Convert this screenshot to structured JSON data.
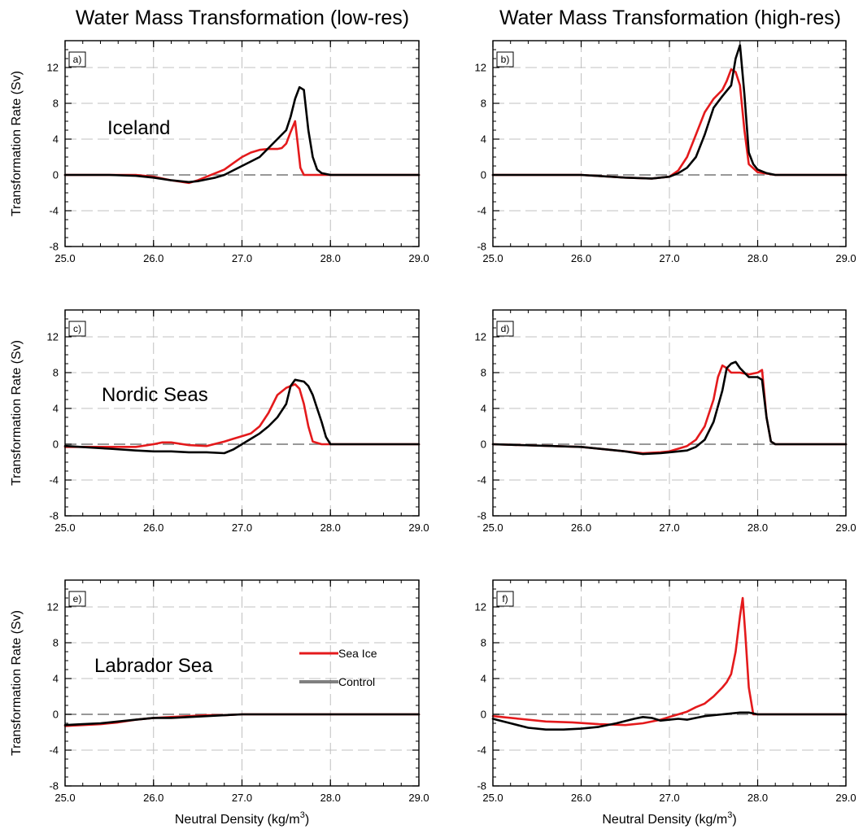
{
  "figure": {
    "column_titles": [
      "Water Mass Transformation (low-res)",
      "Water Mass Transformation (high-res)"
    ],
    "ylabel": "Transformation Rate (Sv)",
    "xlabel_main": "Neutral Density (kg/m",
    "xlabel_sup": "3",
    "xlabel_close": ")",
    "colors": {
      "sea_ice": "#e41a1c",
      "control": "#000000",
      "zero_line": "#777777",
      "grid": "#c0c0c0"
    }
  },
  "chart_data": [
    {
      "type": "line",
      "panel": "a)",
      "region": "Iceland",
      "column": "low-res",
      "xlim": [
        25.0,
        29.0
      ],
      "ylim": [
        -8,
        15
      ],
      "xticks": [
        "25.0",
        "26.0",
        "27.0",
        "28.0",
        "29.0"
      ],
      "yticks": [
        "-8",
        "-4",
        "0",
        "4",
        "8",
        "12"
      ],
      "grid": true,
      "series": [
        {
          "name": "Sea Ice",
          "color": "#e41a1c",
          "x": [
            25.0,
            25.5,
            25.8,
            26.0,
            26.2,
            26.4,
            26.5,
            26.6,
            26.7,
            26.8,
            26.9,
            27.0,
            27.1,
            27.2,
            27.3,
            27.4,
            27.45,
            27.5,
            27.55,
            27.6,
            27.63,
            27.66,
            27.7,
            28.0,
            29.0
          ],
          "y": [
            0,
            0,
            0,
            -0.2,
            -0.6,
            -0.9,
            -0.6,
            -0.2,
            0.2,
            0.6,
            1.3,
            2.0,
            2.5,
            2.8,
            2.9,
            2.9,
            3.0,
            3.5,
            4.8,
            6.0,
            3.5,
            0.8,
            0,
            0,
            0
          ]
        },
        {
          "name": "Control",
          "color": "#000000",
          "x": [
            25.0,
            25.5,
            25.8,
            26.0,
            26.2,
            26.4,
            26.5,
            26.6,
            26.7,
            26.8,
            26.9,
            27.0,
            27.1,
            27.2,
            27.3,
            27.4,
            27.45,
            27.5,
            27.55,
            27.6,
            27.65,
            27.7,
            27.75,
            27.8,
            27.85,
            27.9,
            28.0,
            29.0
          ],
          "y": [
            0,
            0,
            -0.1,
            -0.3,
            -0.6,
            -0.8,
            -0.7,
            -0.5,
            -0.3,
            0,
            0.5,
            1.0,
            1.5,
            2.0,
            3.0,
            4.0,
            4.5,
            5.0,
            6.5,
            8.5,
            9.8,
            9.5,
            5.0,
            2.0,
            0.6,
            0.2,
            0,
            0
          ]
        }
      ]
    },
    {
      "type": "line",
      "panel": "b)",
      "region": "",
      "column": "high-res",
      "xlim": [
        25.0,
        29.0
      ],
      "ylim": [
        -8,
        15
      ],
      "xticks": [
        "25.0",
        "26.0",
        "27.0",
        "28.0",
        "29.0"
      ],
      "yticks": [
        "-8",
        "-4",
        "0",
        "4",
        "8",
        "12"
      ],
      "grid": true,
      "series": [
        {
          "name": "Sea Ice",
          "color": "#e41a1c",
          "x": [
            25.0,
            26.0,
            26.5,
            26.8,
            27.0,
            27.1,
            27.2,
            27.3,
            27.4,
            27.5,
            27.6,
            27.65,
            27.7,
            27.75,
            27.8,
            27.85,
            27.9,
            28.0,
            28.2,
            29.0
          ],
          "y": [
            0,
            0,
            -0.3,
            -0.4,
            -0.2,
            0.5,
            2.0,
            4.5,
            7.0,
            8.5,
            9.5,
            10.5,
            11.8,
            11.5,
            10.0,
            5.0,
            1.2,
            0.3,
            0,
            0
          ]
        },
        {
          "name": "Control",
          "color": "#000000",
          "x": [
            25.0,
            26.0,
            26.5,
            26.8,
            27.0,
            27.1,
            27.2,
            27.3,
            27.4,
            27.5,
            27.6,
            27.7,
            27.75,
            27.8,
            27.85,
            27.9,
            27.95,
            28.0,
            28.1,
            28.2,
            29.0
          ],
          "y": [
            0,
            0,
            -0.3,
            -0.4,
            -0.2,
            0.2,
            0.8,
            2.0,
            4.5,
            7.5,
            8.8,
            10.0,
            13.0,
            14.5,
            9.0,
            2.5,
            1.2,
            0.6,
            0.2,
            0,
            0
          ]
        }
      ]
    },
    {
      "type": "line",
      "panel": "c)",
      "region": "Nordic Seas",
      "column": "low-res",
      "xlim": [
        25.0,
        29.0
      ],
      "ylim": [
        -8,
        15
      ],
      "xticks": [
        "25.0",
        "26.0",
        "27.0",
        "28.0",
        "29.0"
      ],
      "yticks": [
        "-8",
        "-4",
        "0",
        "4",
        "8",
        "12"
      ],
      "grid": true,
      "series": [
        {
          "name": "Sea Ice",
          "color": "#e41a1c",
          "x": [
            25.0,
            25.4,
            25.8,
            26.0,
            26.1,
            26.2,
            26.4,
            26.6,
            26.8,
            26.9,
            27.0,
            27.1,
            27.2,
            27.3,
            27.4,
            27.5,
            27.6,
            27.65,
            27.7,
            27.75,
            27.8,
            27.9,
            29.0
          ],
          "y": [
            -0.3,
            -0.3,
            -0.3,
            0,
            0.2,
            0.2,
            -0.1,
            -0.2,
            0.3,
            0.6,
            0.9,
            1.2,
            2.0,
            3.5,
            5.5,
            6.3,
            6.7,
            6.2,
            4.5,
            2.0,
            0.3,
            0,
            0
          ]
        },
        {
          "name": "Control",
          "color": "#000000",
          "x": [
            25.0,
            25.5,
            25.8,
            26.0,
            26.2,
            26.4,
            26.6,
            26.8,
            26.9,
            27.0,
            27.1,
            27.2,
            27.3,
            27.4,
            27.5,
            27.55,
            27.6,
            27.7,
            27.75,
            27.8,
            27.85,
            27.9,
            27.95,
            28.0,
            29.0
          ],
          "y": [
            -0.2,
            -0.5,
            -0.7,
            -0.8,
            -0.8,
            -0.9,
            -0.9,
            -1.0,
            -0.6,
            0,
            0.6,
            1.2,
            2.0,
            3.0,
            4.5,
            6.5,
            7.2,
            7.0,
            6.5,
            5.5,
            4.0,
            2.5,
            0.8,
            0,
            0
          ]
        }
      ]
    },
    {
      "type": "line",
      "panel": "d)",
      "region": "",
      "column": "high-res",
      "xlim": [
        25.0,
        29.0
      ],
      "ylim": [
        -8,
        15
      ],
      "xticks": [
        "25.0",
        "26.0",
        "27.0",
        "28.0",
        "29.0"
      ],
      "yticks": [
        "-8",
        "-4",
        "0",
        "4",
        "8",
        "12"
      ],
      "grid": true,
      "series": [
        {
          "name": "Sea Ice",
          "color": "#e41a1c",
          "x": [
            25.0,
            26.0,
            26.5,
            26.7,
            26.9,
            27.0,
            27.1,
            27.2,
            27.3,
            27.4,
            27.5,
            27.55,
            27.6,
            27.65,
            27.7,
            27.8,
            27.9,
            28.0,
            28.05,
            28.1,
            28.15,
            28.2,
            29.0
          ],
          "y": [
            0,
            -0.3,
            -0.8,
            -1.0,
            -0.9,
            -0.8,
            -0.5,
            -0.2,
            0.5,
            2.0,
            5.0,
            7.5,
            8.8,
            8.5,
            8.0,
            8.0,
            7.8,
            8.0,
            8.3,
            3.0,
            0.3,
            0,
            0
          ]
        },
        {
          "name": "Control",
          "color": "#000000",
          "x": [
            25.0,
            26.0,
            26.5,
            26.7,
            26.9,
            27.0,
            27.1,
            27.2,
            27.3,
            27.4,
            27.5,
            27.6,
            27.65,
            27.7,
            27.75,
            27.8,
            27.9,
            28.0,
            28.05,
            28.1,
            28.15,
            28.2,
            29.0
          ],
          "y": [
            0,
            -0.3,
            -0.8,
            -1.1,
            -1.0,
            -0.9,
            -0.8,
            -0.7,
            -0.3,
            0.5,
            2.5,
            6.0,
            8.5,
            9.0,
            9.2,
            8.5,
            7.5,
            7.5,
            7.2,
            3.0,
            0.3,
            0,
            0
          ]
        }
      ]
    },
    {
      "type": "line",
      "panel": "e)",
      "region": "Labrador Sea",
      "column": "low-res",
      "xlim": [
        25.0,
        29.0
      ],
      "ylim": [
        -8,
        15
      ],
      "xticks": [
        "25.0",
        "26.0",
        "27.0",
        "28.0",
        "29.0"
      ],
      "yticks": [
        "-8",
        "-4",
        "0",
        "4",
        "8",
        "12"
      ],
      "grid": true,
      "legend": {
        "placement": "right-center"
      },
      "series": [
        {
          "name": "Sea Ice",
          "color": "#e41a1c",
          "x": [
            25.0,
            25.2,
            25.4,
            25.6,
            25.8,
            26.0,
            26.2,
            26.4,
            26.6,
            26.8,
            27.0,
            27.5,
            29.0
          ],
          "y": [
            -1.3,
            -1.2,
            -1.1,
            -0.9,
            -0.6,
            -0.4,
            -0.3,
            -0.2,
            -0.1,
            -0.1,
            0,
            0,
            0
          ]
        },
        {
          "name": "Control",
          "color": "#000000",
          "x": [
            25.0,
            25.2,
            25.4,
            25.6,
            25.8,
            26.0,
            26.2,
            26.4,
            26.6,
            26.8,
            27.0,
            27.5,
            29.0
          ],
          "y": [
            -1.2,
            -1.1,
            -1.0,
            -0.8,
            -0.6,
            -0.4,
            -0.4,
            -0.3,
            -0.2,
            -0.1,
            0,
            0,
            0
          ]
        }
      ]
    },
    {
      "type": "line",
      "panel": "f)",
      "region": "",
      "column": "high-res",
      "xlim": [
        25.0,
        29.0
      ],
      "ylim": [
        -8,
        15
      ],
      "xticks": [
        "25.0",
        "26.0",
        "27.0",
        "28.0",
        "29.0"
      ],
      "yticks": [
        "-8",
        "-4",
        "0",
        "4",
        "8",
        "12"
      ],
      "grid": true,
      "series": [
        {
          "name": "Sea Ice",
          "color": "#e41a1c",
          "x": [
            25.0,
            25.3,
            25.6,
            25.9,
            26.2,
            26.5,
            26.7,
            26.9,
            27.0,
            27.1,
            27.2,
            27.3,
            27.4,
            27.5,
            27.6,
            27.65,
            27.7,
            27.75,
            27.8,
            27.83,
            27.86,
            27.9,
            27.95,
            29.0
          ],
          "y": [
            -0.2,
            -0.5,
            -0.8,
            -0.9,
            -1.1,
            -1.2,
            -1.0,
            -0.6,
            -0.3,
            0,
            0.3,
            0.8,
            1.2,
            2.0,
            3.0,
            3.6,
            4.5,
            7.0,
            11.0,
            13.0,
            9.0,
            3.0,
            0,
            0
          ]
        },
        {
          "name": "Control",
          "color": "#000000",
          "x": [
            25.0,
            25.2,
            25.4,
            25.6,
            25.8,
            26.0,
            26.2,
            26.4,
            26.6,
            26.7,
            26.8,
            26.9,
            27.0,
            27.1,
            27.2,
            27.3,
            27.4,
            27.6,
            27.8,
            27.9,
            28.0,
            29.0
          ],
          "y": [
            -0.5,
            -1.0,
            -1.5,
            -1.7,
            -1.7,
            -1.6,
            -1.4,
            -1.0,
            -0.5,
            -0.3,
            -0.4,
            -0.7,
            -0.6,
            -0.5,
            -0.6,
            -0.4,
            -0.2,
            0,
            0.2,
            0.2,
            0,
            0
          ]
        }
      ]
    }
  ]
}
